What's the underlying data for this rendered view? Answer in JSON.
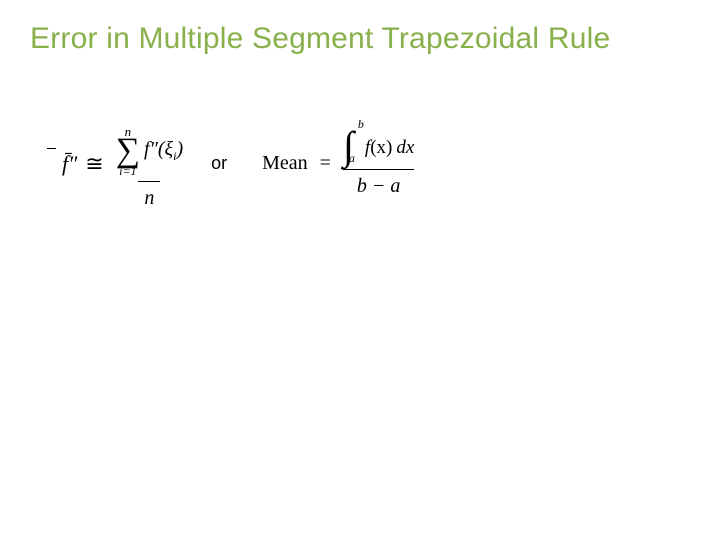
{
  "title": {
    "text": "Error in Multiple Segment  Trapezoidal Rule",
    "color": "#88b04b",
    "fontsize_pt": 30
  },
  "connector": "or",
  "formula_left": {
    "lhs": "f̄″",
    "approx_symbol": "≅",
    "sum_upper": "n",
    "sum_lower": "i=1",
    "summand_f": "f″",
    "summand_arg": "(ξ",
    "summand_sub": "i",
    "summand_close": ")",
    "denominator": "n"
  },
  "formula_right": {
    "lhs": "Mean",
    "eq": "=",
    "int_lb": "a",
    "int_ub": "b",
    "integrand_f": "f",
    "integrand_arg": "(x)",
    "integrand_dx": "dx",
    "denominator": "b − a"
  },
  "colors": {
    "text": "#000000",
    "background": "#ffffff"
  }
}
